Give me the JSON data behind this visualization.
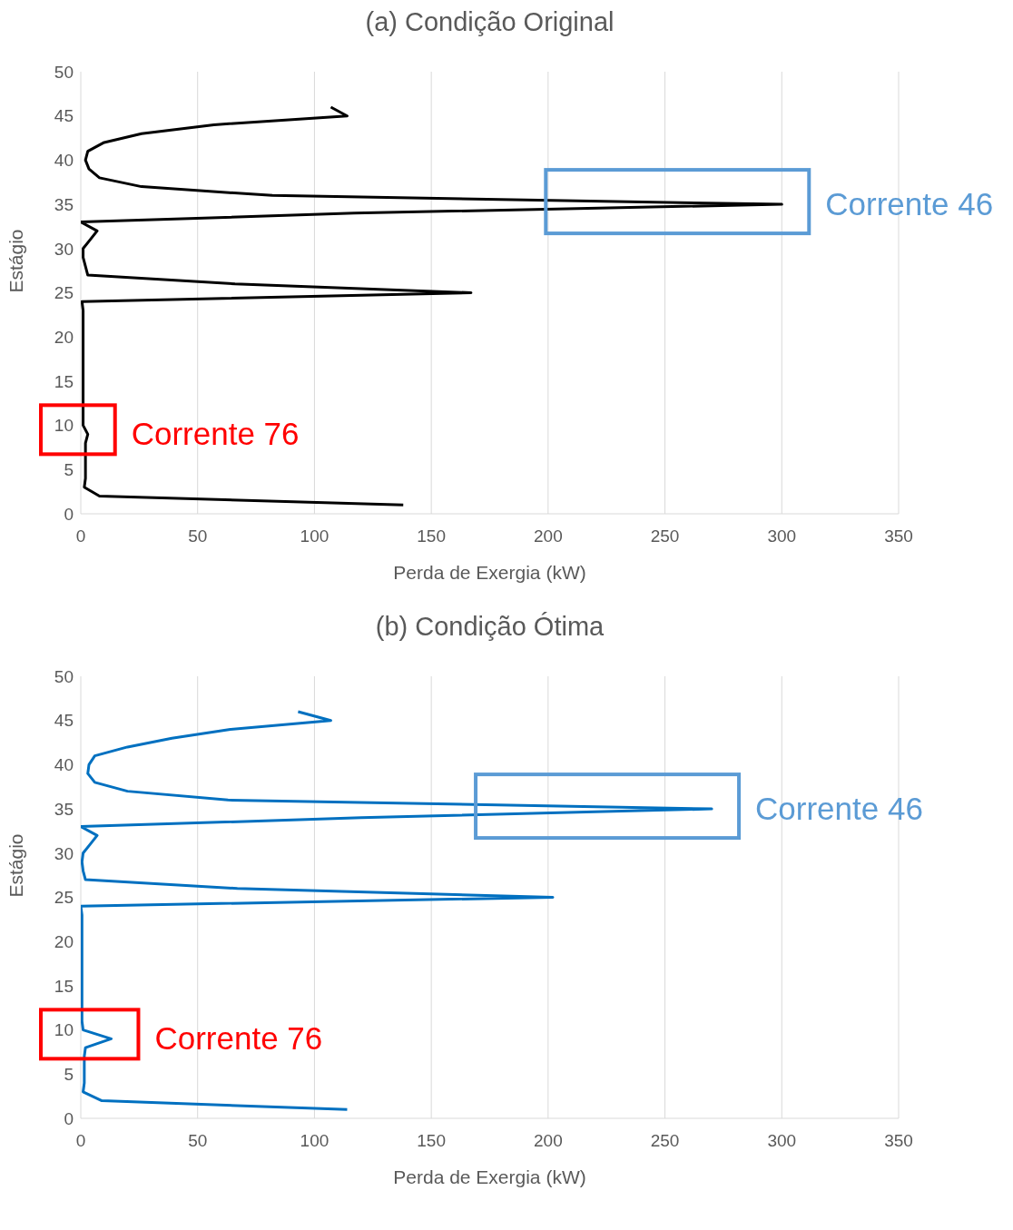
{
  "chart_data": [
    {
      "type": "line",
      "title": "(a) Condição Original",
      "xlabel": "Perda de Exergia (kW)",
      "ylabel": "Estágio",
      "xlim": [
        0,
        350
      ],
      "xticks": [
        0,
        50,
        100,
        150,
        200,
        250,
        300,
        350
      ],
      "ylim": [
        0,
        50
      ],
      "yticks": [
        0,
        5,
        10,
        15,
        20,
        25,
        30,
        35,
        40,
        45,
        50
      ],
      "grid": "x",
      "series": [
        {
          "color": "#000000",
          "x": [
            138,
            8,
            1.5,
            2,
            2,
            2,
            2,
            2,
            3,
            1,
            1,
            1,
            1,
            1,
            1,
            1,
            1,
            1,
            1,
            1,
            1,
            1,
            1,
            0.5,
            167,
            66,
            3,
            2,
            1,
            1,
            4,
            7,
            0,
            117,
            300,
            82,
            26,
            8,
            3.5,
            2,
            3,
            10,
            26,
            57,
            114,
            107
          ],
          "values": [
            1,
            2,
            3,
            4,
            5,
            6,
            7,
            8,
            9,
            10,
            11,
            12,
            13,
            14,
            15,
            16,
            17,
            18,
            19,
            20,
            21,
            22,
            23,
            24,
            25,
            26,
            27,
            28,
            29,
            30,
            31,
            32,
            33,
            34,
            35,
            36,
            37,
            38,
            39,
            40,
            41,
            42,
            43,
            44,
            45,
            46
          ]
        }
      ],
      "annotations": [
        {
          "text": "Corrente 46",
          "x": 300,
          "y": 35
        },
        {
          "text": "Corrente 76",
          "x": 3,
          "y": 9
        }
      ]
    },
    {
      "type": "line",
      "title": "(b) Condição Ótima",
      "xlabel": "Perda de Exergia (kW)",
      "ylabel": "Estágio",
      "xlim": [
        0,
        350
      ],
      "xticks": [
        0,
        50,
        100,
        150,
        200,
        250,
        300,
        350
      ],
      "ylim": [
        0,
        50
      ],
      "yticks": [
        0,
        5,
        10,
        15,
        20,
        25,
        30,
        35,
        40,
        45,
        50
      ],
      "grid": "x",
      "series": [
        {
          "color": "#0070c0",
          "x": [
            114,
            9,
            1,
            1.5,
            1.5,
            1.5,
            1.5,
            2,
            13,
            1,
            0.5,
            0.5,
            0.5,
            0.5,
            0.5,
            0.5,
            0.5,
            0.5,
            0.5,
            0.5,
            0.5,
            0.5,
            0.5,
            0,
            202,
            67,
            2,
            1,
            0.5,
            1,
            4,
            7,
            0,
            120,
            270,
            63,
            20,
            6,
            3,
            3.5,
            6,
            20,
            39,
            64,
            107,
            93
          ],
          "values": [
            1,
            2,
            3,
            4,
            5,
            6,
            7,
            8,
            9,
            10,
            11,
            12,
            13,
            14,
            15,
            16,
            17,
            18,
            19,
            20,
            21,
            22,
            23,
            24,
            25,
            26,
            27,
            28,
            29,
            30,
            31,
            32,
            33,
            34,
            35,
            36,
            37,
            38,
            39,
            40,
            41,
            42,
            43,
            44,
            45,
            46
          ]
        }
      ],
      "annotations": [
        {
          "text": "Corrente 46",
          "x": 270,
          "y": 35
        },
        {
          "text": "Corrente 76",
          "x": 13,
          "y": 9
        }
      ]
    }
  ]
}
